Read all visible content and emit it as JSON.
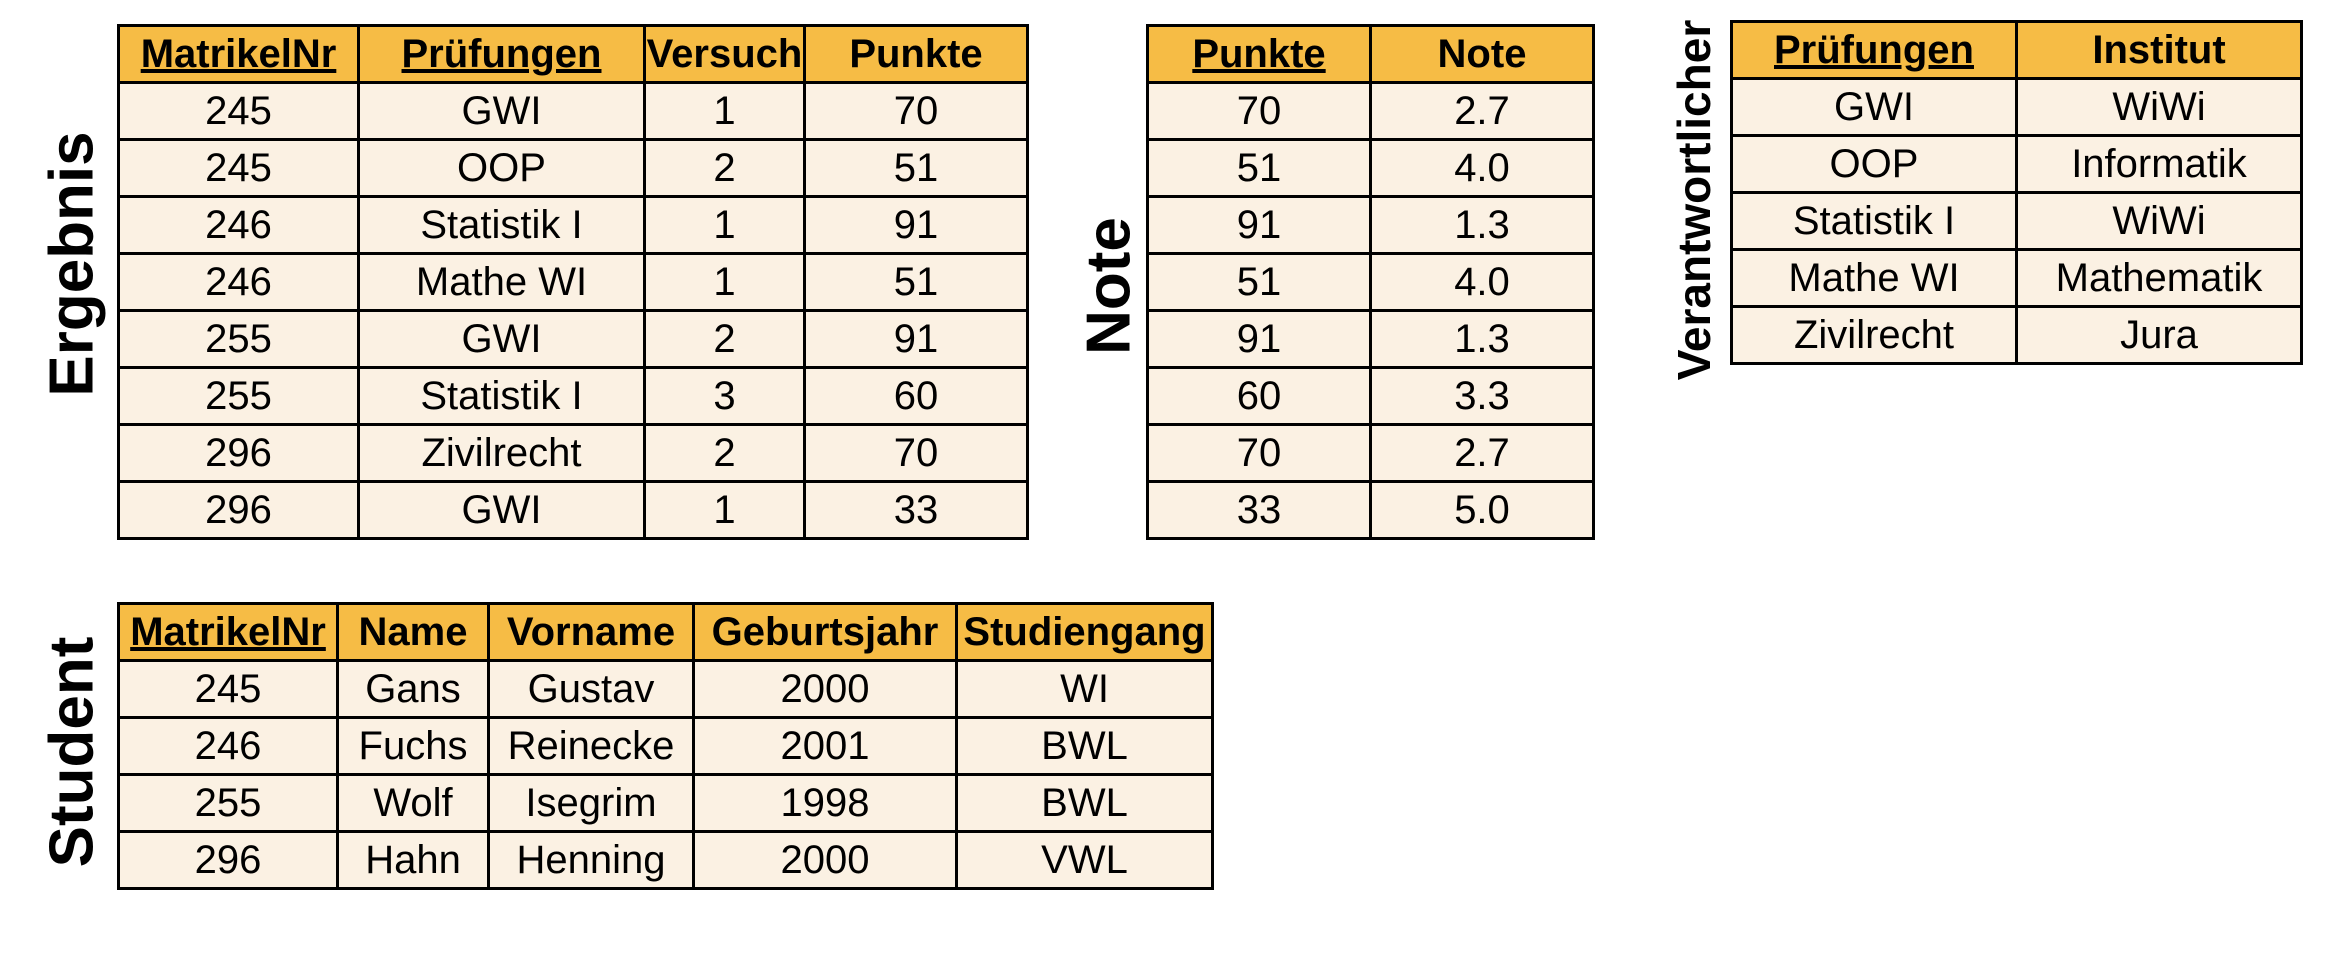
{
  "tables": {
    "ergebnis": {
      "title": "Ergebnis",
      "columns": [
        {
          "label": "MatrikelNr",
          "key": true
        },
        {
          "label": "Prüfungen",
          "key": true
        },
        {
          "label": "Versuch",
          "key": false
        },
        {
          "label": "Punkte",
          "key": false
        }
      ],
      "rows": [
        [
          "245",
          "GWI",
          "1",
          "70"
        ],
        [
          "245",
          "OOP",
          "2",
          "51"
        ],
        [
          "246",
          "Statistik I",
          "1",
          "91"
        ],
        [
          "246",
          "Mathe WI",
          "1",
          "51"
        ],
        [
          "255",
          "GWI",
          "2",
          "91"
        ],
        [
          "255",
          "Statistik I",
          "3",
          "60"
        ],
        [
          "296",
          "Zivilrecht",
          "2",
          "70"
        ],
        [
          "296",
          "GWI",
          "1",
          "33"
        ]
      ]
    },
    "note": {
      "title": "Note",
      "columns": [
        {
          "label": "Punkte",
          "key": true
        },
        {
          "label": "Note",
          "key": false
        }
      ],
      "rows": [
        [
          "70",
          "2.7"
        ],
        [
          "51",
          "4.0"
        ],
        [
          "91",
          "1.3"
        ],
        [
          "51",
          "4.0"
        ],
        [
          "91",
          "1.3"
        ],
        [
          "60",
          "3.3"
        ],
        [
          "70",
          "2.7"
        ],
        [
          "33",
          "5.0"
        ]
      ]
    },
    "verantwortlicher": {
      "title": "Verantwortlicher",
      "columns": [
        {
          "label": "Prüfungen",
          "key": true
        },
        {
          "label": "Institut",
          "key": false
        }
      ],
      "rows": [
        [
          "GWI",
          "WiWi"
        ],
        [
          "OOP",
          "Informatik"
        ],
        [
          "Statistik I",
          "WiWi"
        ],
        [
          "Mathe WI",
          "Mathematik"
        ],
        [
          "Zivilrecht",
          "Jura"
        ]
      ]
    },
    "student": {
      "title": "Student",
      "columns": [
        {
          "label": "MatrikelNr",
          "key": true
        },
        {
          "label": "Name",
          "key": false
        },
        {
          "label": "Vorname",
          "key": false
        },
        {
          "label": "Geburtsjahr",
          "key": false
        },
        {
          "label": "Studiengang",
          "key": false
        }
      ],
      "rows": [
        [
          "245",
          "Gans",
          "Gustav",
          "2000",
          "WI"
        ],
        [
          "246",
          "Fuchs",
          "Reinecke",
          "2001",
          "BWL"
        ],
        [
          "255",
          "Wolf",
          "Isegrim",
          "1998",
          "BWL"
        ],
        [
          "296",
          "Hahn",
          "Henning",
          "2000",
          "VWL"
        ]
      ]
    }
  },
  "colors": {
    "header_fill": "#f6bc45",
    "cell_fill": "#fbf1e3",
    "border": "#000000"
  }
}
